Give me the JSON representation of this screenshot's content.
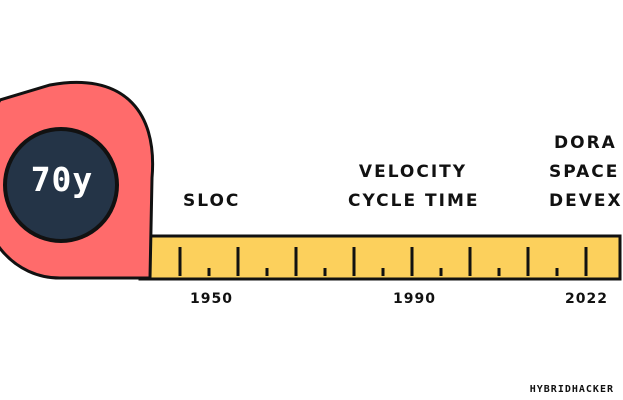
{
  "tape_measure": {
    "badge": "70y",
    "colors": {
      "housing": "#ff6b6b",
      "badge": "#243447",
      "tape": "#fcd05c",
      "outline": "#111111"
    },
    "eras": [
      {
        "year": "1950",
        "metrics": [
          "SLOC"
        ]
      },
      {
        "year": "1990",
        "metrics": [
          "VELOCITY",
          "CYCLE TIME"
        ]
      },
      {
        "year": "2022",
        "metrics": [
          "DORA",
          "SPACE",
          "DEVEX"
        ]
      }
    ]
  },
  "brand": "HYBRIDHACKER"
}
